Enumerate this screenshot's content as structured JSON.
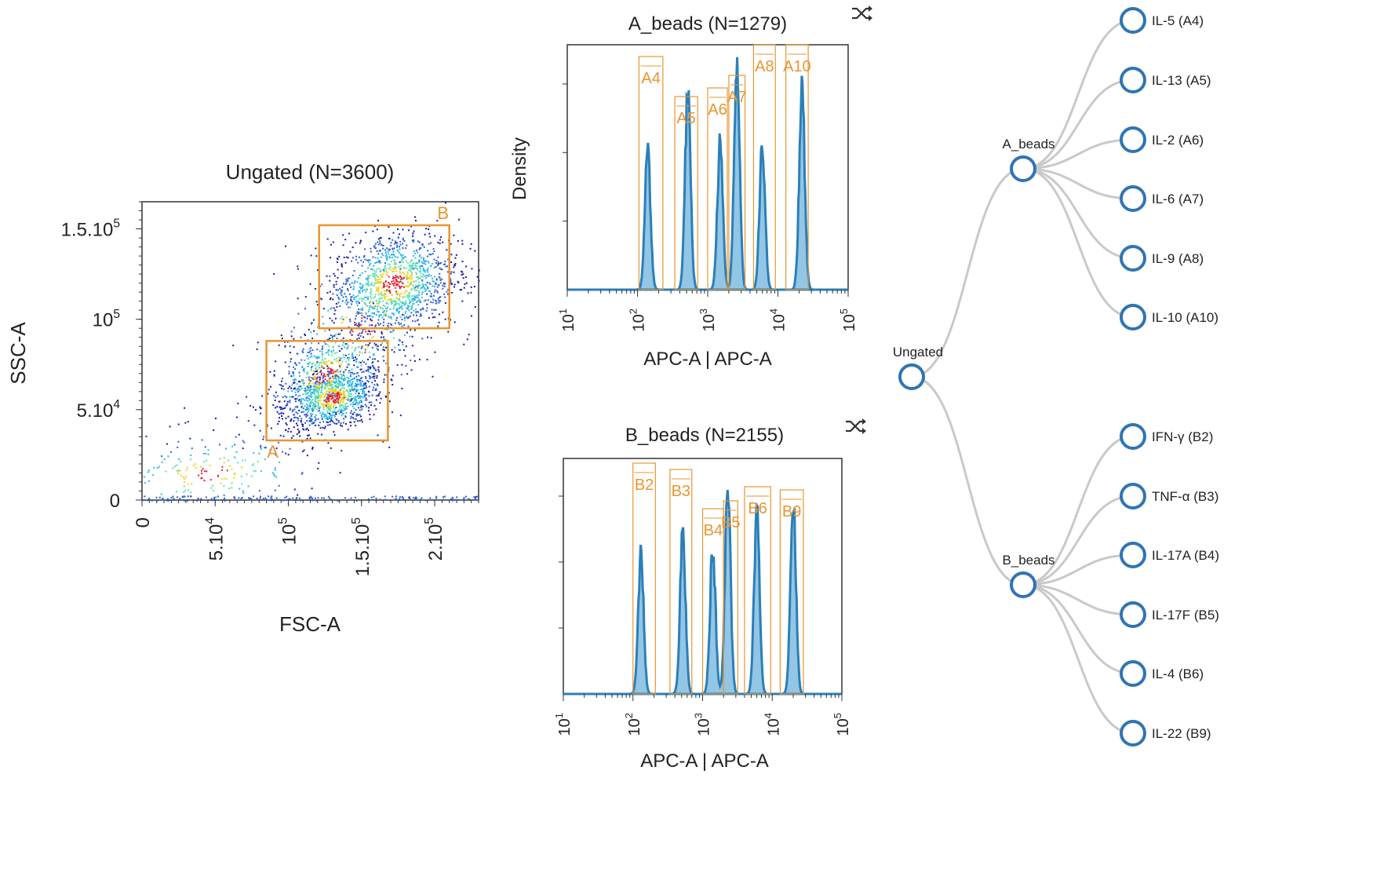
{
  "colors": {
    "gate": "#e8952f",
    "histogram_line": "#2b7fb8",
    "histogram_fill": "#6fb1dc",
    "tree_node": "#2f74b5",
    "tree_edge": "#c9c9c9"
  },
  "icons": {
    "shuffle": "shuffle-icon"
  },
  "scatter": {
    "title": "Ungated (N=3600)",
    "xlabel": "FSC-A",
    "ylabel": "SSC-A",
    "xticks": [
      {
        "value": 0,
        "base": "0",
        "exp": ""
      },
      {
        "value": 50000,
        "base": "5.10",
        "exp": "4"
      },
      {
        "value": 100000,
        "base": "10",
        "exp": "5"
      },
      {
        "value": 150000,
        "base": "1.5.10",
        "exp": "5"
      },
      {
        "value": 200000,
        "base": "2.10",
        "exp": "5"
      }
    ],
    "yticks": [
      {
        "value": 0,
        "base": "0",
        "exp": ""
      },
      {
        "value": 50000,
        "base": "5.10",
        "exp": "4"
      },
      {
        "value": 100000,
        "base": "10",
        "exp": "5"
      },
      {
        "value": 150000,
        "base": "1.5.10",
        "exp": "5"
      }
    ],
    "gates": [
      {
        "name": "A",
        "x": [
          85000,
          168000
        ],
        "y": [
          33000,
          88000
        ]
      },
      {
        "name": "B",
        "x": [
          121000,
          210000
        ],
        "y": [
          95000,
          152000
        ]
      }
    ]
  },
  "chart_data": [
    {
      "type": "scatter",
      "title": "Ungated (N=3600)",
      "xlabel": "FSC-A",
      "ylabel": "SSC-A",
      "xlim": [
        0,
        230000
      ],
      "ylim": [
        0,
        165000
      ],
      "populations": [
        {
          "name": "A",
          "center": [
            132000,
            56000
          ],
          "n": 1700
        },
        {
          "name": "B",
          "center": [
            172000,
            120000
          ],
          "n": 1500
        }
      ]
    },
    {
      "type": "histogram",
      "title": "A_beads (N=1279)",
      "xlabel": "APC-A | APC-A",
      "ylabel": "Density",
      "xscale": "log",
      "xticks": [
        "10^1",
        "10^2",
        "10^3",
        "10^4",
        "10^5"
      ],
      "peaks": [
        {
          "center": 140,
          "height": 0.58
        },
        {
          "center": 520,
          "height": 0.82
        },
        {
          "center": 1500,
          "height": 0.6
        },
        {
          "center": 2600,
          "height": 0.92
        },
        {
          "center": 6000,
          "height": 0.6
        },
        {
          "center": 22000,
          "height": 0.82
        }
      ],
      "gates": [
        {
          "name": "A4",
          "range": [
            105,
            230
          ]
        },
        {
          "name": "A5",
          "range": [
            340,
            720
          ]
        },
        {
          "name": "A6",
          "range": [
            1000,
            1900
          ]
        },
        {
          "name": "A7",
          "range": [
            2000,
            3400
          ]
        },
        {
          "name": "A8",
          "range": [
            4500,
            9200
          ]
        },
        {
          "name": "A10",
          "range": [
            13000,
            27000
          ]
        }
      ]
    },
    {
      "type": "histogram",
      "title": "B_beads (N=2155)",
      "xlabel": "APC-A | APC-A",
      "ylabel": "",
      "xscale": "log",
      "xticks": [
        "10^1",
        "10^2",
        "10^3",
        "10^4",
        "10^5"
      ],
      "peaks": [
        {
          "center": 130,
          "height": 0.58
        },
        {
          "center": 520,
          "height": 0.68
        },
        {
          "center": 1400,
          "height": 0.62
        },
        {
          "center": 2300,
          "height": 0.9
        },
        {
          "center": 6000,
          "height": 0.76
        },
        {
          "center": 20000,
          "height": 0.86
        }
      ],
      "gates": [
        {
          "name": "B2",
          "range": [
            100,
            210
          ]
        },
        {
          "name": "B3",
          "range": [
            340,
            700
          ]
        },
        {
          "name": "B4",
          "range": [
            1000,
            2000
          ]
        },
        {
          "name": "B5",
          "range": [
            2000,
            3200
          ]
        },
        {
          "name": "B6",
          "range": [
            4000,
            9500
          ]
        },
        {
          "name": "B9",
          "range": [
            13000,
            28000
          ]
        }
      ]
    }
  ],
  "tree": {
    "root": "Ungated",
    "groups": [
      {
        "name": "A_beads",
        "children": [
          "IL-5 (A4)",
          "IL-13 (A5)",
          "IL-2 (A6)",
          "IL-6 (A7)",
          "IL-9 (A8)",
          "IL-10 (A10)"
        ]
      },
      {
        "name": "B_beads",
        "children": [
          "IFN-γ (B2)",
          "TNF-α (B3)",
          "IL-17A (B4)",
          "IL-17F (B5)",
          "IL-4 (B6)",
          "IL-22 (B9)"
        ]
      }
    ]
  }
}
